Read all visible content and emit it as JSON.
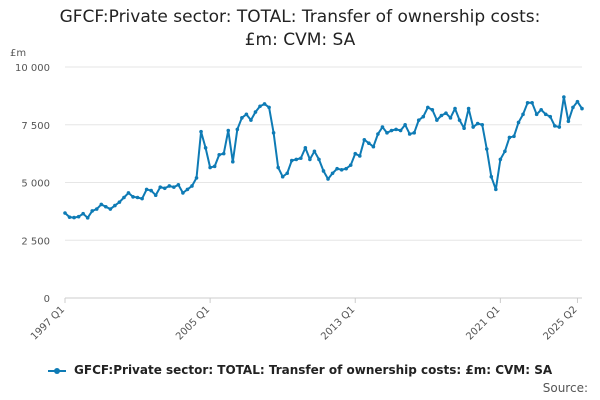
{
  "title_lines": [
    "GFCF:Private sector: TOTAL: Transfer of ownership costs:",
    "£m: CVM: SA"
  ],
  "source_label": "Source:",
  "colors": {
    "series": "#0e7bb5",
    "grid": "#e6e6e6",
    "axis": "#cccccc"
  },
  "chart_data": {
    "type": "line",
    "title": "GFCF:Private sector: TOTAL: Transfer of ownership costs: £m: CVM: SA",
    "unit_label": "£m",
    "ylim": [
      0,
      10000
    ],
    "y_ticks": [
      0,
      2500,
      5000,
      7500,
      10000
    ],
    "y_tick_labels": [
      "0",
      "2 500",
      "5 000",
      "7 500",
      "10 000"
    ],
    "x_ticks": [
      "1997 Q1",
      "2005 Q1",
      "2013 Q1",
      "2021 Q1",
      "2025 Q2"
    ],
    "grid": true,
    "legend_position": "bottom",
    "series": [
      {
        "name": "GFCF:Private sector: TOTAL: Transfer of ownership costs: £m: CVM: SA",
        "x_start": "1997 Q1",
        "frequency": "quarterly",
        "values": [
          3680,
          3500,
          3480,
          3520,
          3650,
          3470,
          3770,
          3850,
          4050,
          3950,
          3850,
          4000,
          4150,
          4350,
          4550,
          4380,
          4350,
          4300,
          4700,
          4650,
          4450,
          4800,
          4750,
          4850,
          4800,
          4900,
          4550,
          4700,
          4850,
          5200,
          7200,
          6500,
          5650,
          5700,
          6200,
          6250,
          7250,
          5900,
          7300,
          7800,
          7950,
          7700,
          8050,
          8300,
          8400,
          8250,
          7150,
          5650,
          5250,
          5400,
          5950,
          6000,
          6050,
          6500,
          6000,
          6350,
          6000,
          5500,
          5150,
          5400,
          5600,
          5550,
          5600,
          5750,
          6250,
          6150,
          6850,
          6700,
          6550,
          7100,
          7400,
          7150,
          7250,
          7300,
          7250,
          7500,
          7100,
          7150,
          7700,
          7850,
          8250,
          8150,
          7700,
          7900,
          8000,
          7800,
          8200,
          7700,
          7350,
          8200,
          7400,
          7550,
          7500,
          6450,
          5250,
          4700,
          6000,
          6350,
          6950,
          7000,
          7600,
          7950,
          8450,
          8450,
          7950,
          8150,
          7950,
          7850,
          7450,
          7400,
          8700,
          7650,
          8250,
          8500,
          8200
        ]
      }
    ]
  }
}
